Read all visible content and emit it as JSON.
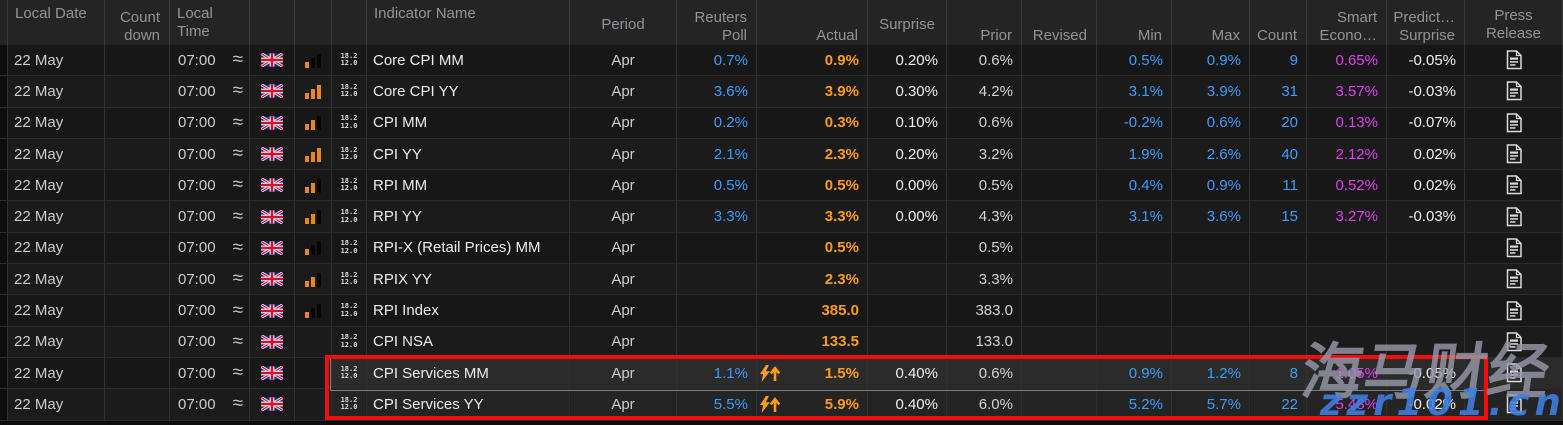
{
  "header": {
    "columns": [
      {
        "id": "grip",
        "lines": []
      },
      {
        "id": "local-date",
        "lines": [
          "Local Date"
        ]
      },
      {
        "id": "countdown",
        "lines": [
          "Count",
          "down"
        ]
      },
      {
        "id": "local-time",
        "lines": [
          "Local",
          "Time"
        ]
      },
      {
        "id": "flag",
        "lines": []
      },
      {
        "id": "importance",
        "lines": []
      },
      {
        "id": "indicator-icon",
        "lines": []
      },
      {
        "id": "indicator-name",
        "lines": [
          "Indicator Name"
        ]
      },
      {
        "id": "period",
        "lines": [
          "Period"
        ]
      },
      {
        "id": "reuters-poll",
        "lines": [
          "Reuters",
          "Poll"
        ]
      },
      {
        "id": "actual",
        "lines": [
          "Actual"
        ]
      },
      {
        "id": "surprise",
        "lines": [
          "Surprise"
        ]
      },
      {
        "id": "prior",
        "lines": [
          "Prior"
        ]
      },
      {
        "id": "revised",
        "lines": [
          "Revised"
        ]
      },
      {
        "id": "min",
        "lines": [
          "Min"
        ]
      },
      {
        "id": "max",
        "lines": [
          "Max"
        ]
      },
      {
        "id": "count",
        "lines": [
          "Count"
        ]
      },
      {
        "id": "smart-economist",
        "lines": [
          "Smart",
          "Econo…"
        ]
      },
      {
        "id": "prediction-surprise",
        "lines": [
          "Predict…",
          "Surprise"
        ]
      },
      {
        "id": "press-release",
        "lines": [
          "Press",
          "Release"
        ]
      }
    ]
  },
  "icons": {
    "approx": "≈",
    "flag": "uk-flag",
    "calc_lines": [
      "18.2",
      "12.0"
    ],
    "flash": "lightning-up",
    "press": "document"
  },
  "rows": [
    {
      "date": "22 May",
      "countdown": "",
      "time": "07:00",
      "importance": 1,
      "indicator": "Core CPI MM",
      "period": "Apr",
      "poll": "0.7%",
      "flash": false,
      "actual": "0.9%",
      "surprise": "0.20%",
      "prior": "0.6%",
      "revised": "",
      "min": "0.5%",
      "max": "0.9%",
      "count": "9",
      "smart": "0.65%",
      "predict": "-0.05%",
      "highlight": false,
      "selected": false
    },
    {
      "date": "22 May",
      "countdown": "",
      "time": "07:00",
      "importance": 3,
      "indicator": "Core CPI YY",
      "period": "Apr",
      "poll": "3.6%",
      "flash": false,
      "actual": "3.9%",
      "surprise": "0.30%",
      "prior": "4.2%",
      "revised": "",
      "min": "3.1%",
      "max": "3.9%",
      "count": "31",
      "smart": "3.57%",
      "predict": "-0.03%",
      "highlight": false,
      "selected": false
    },
    {
      "date": "22 May",
      "countdown": "",
      "time": "07:00",
      "importance": 2,
      "indicator": "CPI MM",
      "period": "Apr",
      "poll": "0.2%",
      "flash": false,
      "actual": "0.3%",
      "surprise": "0.10%",
      "prior": "0.6%",
      "revised": "",
      "min": "-0.2%",
      "max": "0.6%",
      "count": "20",
      "smart": "0.13%",
      "predict": "-0.07%",
      "highlight": false,
      "selected": false
    },
    {
      "date": "22 May",
      "countdown": "",
      "time": "07:00",
      "importance": 3,
      "indicator": "CPI YY",
      "period": "Apr",
      "poll": "2.1%",
      "flash": false,
      "actual": "2.3%",
      "surprise": "0.20%",
      "prior": "3.2%",
      "revised": "",
      "min": "1.9%",
      "max": "2.6%",
      "count": "40",
      "smart": "2.12%",
      "predict": "0.02%",
      "highlight": false,
      "selected": false
    },
    {
      "date": "22 May",
      "countdown": "",
      "time": "07:00",
      "importance": 2,
      "indicator": "RPI MM",
      "period": "Apr",
      "poll": "0.5%",
      "flash": false,
      "actual": "0.5%",
      "surprise": "0.00%",
      "prior": "0.5%",
      "revised": "",
      "min": "0.4%",
      "max": "0.9%",
      "count": "11",
      "smart": "0.52%",
      "predict": "0.02%",
      "highlight": false,
      "selected": false
    },
    {
      "date": "22 May",
      "countdown": "",
      "time": "07:00",
      "importance": 2,
      "indicator": "RPI YY",
      "period": "Apr",
      "poll": "3.3%",
      "flash": false,
      "actual": "3.3%",
      "surprise": "0.00%",
      "prior": "4.3%",
      "revised": "",
      "min": "3.1%",
      "max": "3.6%",
      "count": "15",
      "smart": "3.27%",
      "predict": "-0.03%",
      "highlight": false,
      "selected": false
    },
    {
      "date": "22 May",
      "countdown": "",
      "time": "07:00",
      "importance": 1,
      "indicator": "RPI-X (Retail Prices) MM",
      "period": "Apr",
      "poll": "",
      "flash": false,
      "actual": "0.5%",
      "surprise": "",
      "prior": "0.5%",
      "revised": "",
      "min": "",
      "max": "",
      "count": "",
      "smart": "",
      "predict": "",
      "highlight": false,
      "selected": false
    },
    {
      "date": "22 May",
      "countdown": "",
      "time": "07:00",
      "importance": 2,
      "indicator": "RPIX YY",
      "period": "Apr",
      "poll": "",
      "flash": false,
      "actual": "2.3%",
      "surprise": "",
      "prior": "3.3%",
      "revised": "",
      "min": "",
      "max": "",
      "count": "",
      "smart": "",
      "predict": "",
      "highlight": false,
      "selected": false
    },
    {
      "date": "22 May",
      "countdown": "",
      "time": "07:00",
      "importance": 1,
      "indicator": "RPI Index",
      "period": "Apr",
      "poll": "",
      "flash": false,
      "actual": "385.0",
      "surprise": "",
      "prior": "383.0",
      "revised": "",
      "min": "",
      "max": "",
      "count": "",
      "smart": "",
      "predict": "",
      "highlight": false,
      "selected": false
    },
    {
      "date": "22 May",
      "countdown": "",
      "time": "07:00",
      "importance": 0,
      "indicator": "CPI NSA",
      "period": "Apr",
      "poll": "",
      "flash": false,
      "actual": "133.5",
      "surprise": "",
      "prior": "133.0",
      "revised": "",
      "min": "",
      "max": "",
      "count": "",
      "smart": "",
      "predict": "",
      "highlight": false,
      "selected": false
    },
    {
      "date": "22 May",
      "countdown": "",
      "time": "07:00",
      "importance": 0,
      "indicator": "CPI Services MM",
      "period": "Apr",
      "poll": "1.1%",
      "flash": true,
      "actual": "1.5%",
      "surprise": "0.40%",
      "prior": "0.6%",
      "revised": "",
      "min": "0.9%",
      "max": "1.2%",
      "count": "8",
      "smart": "1.05%",
      "predict": "-0.05%",
      "highlight": true,
      "selected": true
    },
    {
      "date": "22 May",
      "countdown": "",
      "time": "07:00",
      "importance": 0,
      "indicator": "CPI Services YY",
      "period": "Apr",
      "poll": "5.5%",
      "flash": true,
      "actual": "5.9%",
      "surprise": "0.40%",
      "prior": "6.0%",
      "revised": "",
      "min": "5.2%",
      "max": "5.7%",
      "count": "22",
      "smart": "5.48%",
      "predict": "-0.02%",
      "highlight": true,
      "selected": false
    }
  ],
  "colors": {
    "poll_min_max_count_blue": "#3b9dfd",
    "actual_orange": "#fd9c1c",
    "smart_magenta": "#e13df2",
    "annotation_red": "#f20c0c",
    "watermark_blue": "#3e80e2",
    "watermark_gray": "#969aa8"
  },
  "watermark": {
    "cn_text": "海马财经",
    "domain_text": "zzr101.cn"
  },
  "annotation": {
    "type": "red-box",
    "highlighted_indicators": [
      "CPI Services MM",
      "CPI Services YY"
    ]
  }
}
